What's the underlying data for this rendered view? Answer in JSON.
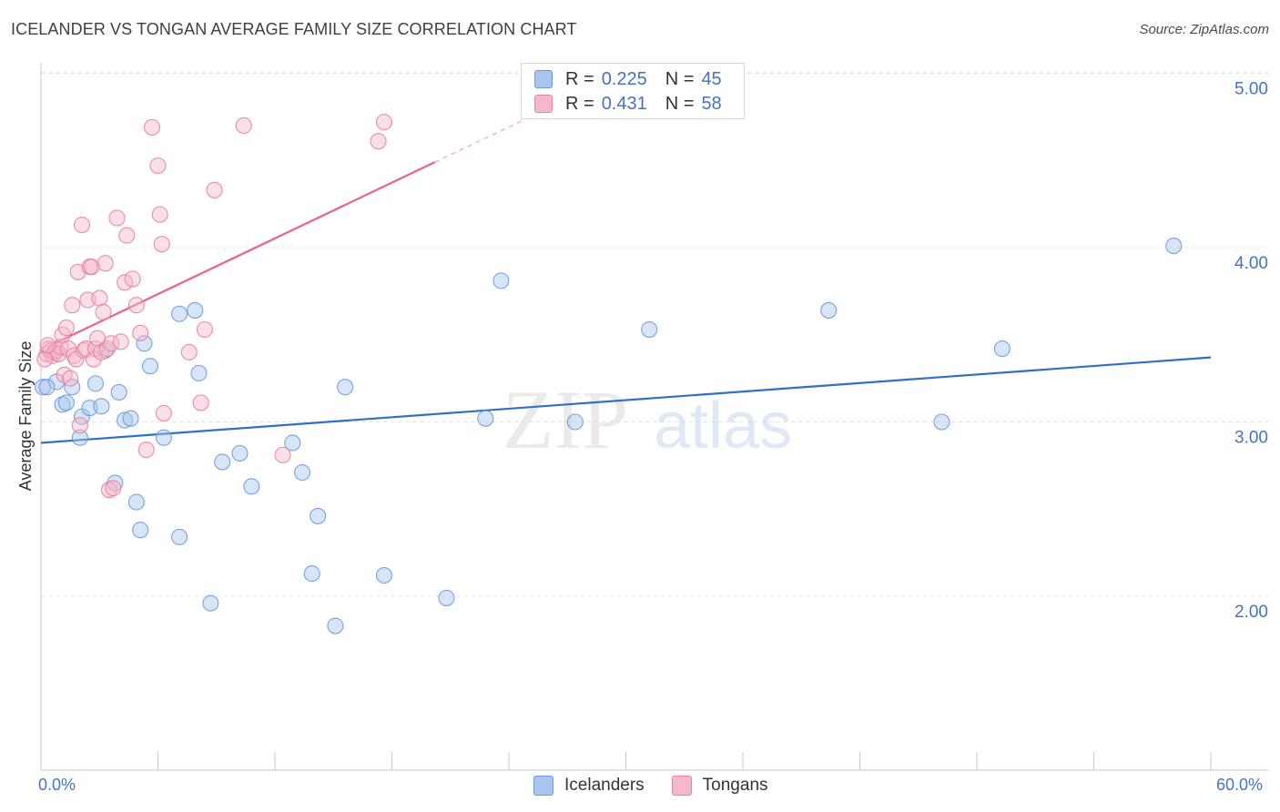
{
  "title": "ICELANDER VS TONGAN AVERAGE FAMILY SIZE CORRELATION CHART",
  "source": "Source: ZipAtlas.com",
  "watermark": {
    "zip": "ZIP",
    "atlas": "atlas"
  },
  "legend": {
    "rows": [
      {
        "r_label": "R =",
        "r_value": "0.225",
        "n_label": "N =",
        "n_value": "45",
        "color": "#a9c4ef"
      },
      {
        "r_label": "R =",
        "r_value": "0.431",
        "n_label": "N =",
        "n_value": "58",
        "color": "#f5b8ca"
      }
    ]
  },
  "bottom_legend": {
    "items": [
      {
        "label": "Icelanders",
        "color": "#a9c4ef"
      },
      {
        "label": "Tongans",
        "color": "#f5b8ca"
      }
    ]
  },
  "x_axis": {
    "min_label": "0.0%",
    "max_label": "60.0%"
  },
  "chart_data": {
    "type": "scatter",
    "title": "ICELANDER VS TONGAN AVERAGE FAMILY SIZE CORRELATION CHART",
    "xlabel": "",
    "ylabel": "Average Family Size",
    "xlim": [
      0,
      60
    ],
    "ylim": [
      1.0,
      5.1
    ],
    "y_ticks": [
      2.0,
      3.0,
      4.0,
      5.0
    ],
    "y_tick_labels": [
      "2.00",
      "3.00",
      "4.00",
      "5.00"
    ],
    "x_ticks": [
      0,
      6,
      12,
      18,
      24,
      30,
      36,
      42,
      48,
      54,
      60
    ],
    "grid": true,
    "series": [
      {
        "name": "Icelanders",
        "color": "#a9c4ef",
        "edge": "#6a9ad8",
        "r": 0.225,
        "n": 45,
        "trend": {
          "x0": 0,
          "y0": 2.88,
          "x1": 60,
          "y1": 3.37,
          "color": "#2f6fc9"
        },
        "points": [
          [
            0.1,
            3.2
          ],
          [
            0.8,
            3.23
          ],
          [
            1.1,
            3.1
          ],
          [
            1.3,
            3.11
          ],
          [
            1.6,
            3.2
          ],
          [
            2.0,
            2.91
          ],
          [
            2.1,
            3.03
          ],
          [
            2.5,
            3.08
          ],
          [
            2.8,
            3.22
          ],
          [
            3.1,
            3.09
          ],
          [
            3.3,
            3.41
          ],
          [
            3.8,
            2.65
          ],
          [
            4.0,
            3.17
          ],
          [
            4.3,
            3.01
          ],
          [
            4.6,
            3.02
          ],
          [
            4.9,
            2.54
          ],
          [
            5.1,
            2.38
          ],
          [
            5.3,
            3.45
          ],
          [
            5.6,
            3.32
          ],
          [
            6.3,
            2.91
          ],
          [
            7.1,
            2.34
          ],
          [
            7.1,
            3.62
          ],
          [
            7.9,
            3.64
          ],
          [
            8.1,
            3.28
          ],
          [
            8.7,
            1.96
          ],
          [
            9.3,
            2.77
          ],
          [
            10.2,
            2.82
          ],
          [
            10.8,
            2.63
          ],
          [
            12.9,
            2.88
          ],
          [
            13.4,
            2.71
          ],
          [
            13.9,
            2.13
          ],
          [
            14.2,
            2.46
          ],
          [
            15.1,
            1.83
          ],
          [
            15.6,
            3.2
          ],
          [
            17.6,
            2.12
          ],
          [
            20.8,
            1.99
          ],
          [
            22.8,
            3.02
          ],
          [
            23.6,
            3.81
          ],
          [
            27.4,
            3.0
          ],
          [
            31.2,
            3.53
          ],
          [
            40.4,
            3.64
          ],
          [
            46.2,
            3.0
          ],
          [
            49.3,
            3.42
          ],
          [
            58.1,
            4.01
          ],
          [
            0.3,
            3.2
          ]
        ]
      },
      {
        "name": "Tongans",
        "color": "#f5b8ca",
        "edge": "#e8829f",
        "r": 0.431,
        "n": 58,
        "trend": {
          "x0": 0.5,
          "y0": 3.44,
          "x1": 20.2,
          "y1": 4.49,
          "color": "#e8638b",
          "dash_to": {
            "x": 28.5,
            "y": 4.93
          }
        },
        "points": [
          [
            0.3,
            3.39
          ],
          [
            0.4,
            3.42
          ],
          [
            0.5,
            3.41
          ],
          [
            0.6,
            3.38
          ],
          [
            0.7,
            3.4
          ],
          [
            0.8,
            3.41
          ],
          [
            0.9,
            3.39
          ],
          [
            1.0,
            3.43
          ],
          [
            1.1,
            3.5
          ],
          [
            1.2,
            3.27
          ],
          [
            1.3,
            3.54
          ],
          [
            1.4,
            3.42
          ],
          [
            1.5,
            3.25
          ],
          [
            1.6,
            3.67
          ],
          [
            1.7,
            3.38
          ],
          [
            1.8,
            3.36
          ],
          [
            1.9,
            3.86
          ],
          [
            2.0,
            2.98
          ],
          [
            2.1,
            4.13
          ],
          [
            2.2,
            3.41
          ],
          [
            2.3,
            3.42
          ],
          [
            2.4,
            3.7
          ],
          [
            2.5,
            3.89
          ],
          [
            2.6,
            3.89
          ],
          [
            2.7,
            3.36
          ],
          [
            2.8,
            3.42
          ],
          [
            2.9,
            3.48
          ],
          [
            3.0,
            3.71
          ],
          [
            3.1,
            3.4
          ],
          [
            3.2,
            3.63
          ],
          [
            3.3,
            3.91
          ],
          [
            3.4,
            3.42
          ],
          [
            3.5,
            2.61
          ],
          [
            3.6,
            3.45
          ],
          [
            3.7,
            2.62
          ],
          [
            3.9,
            4.17
          ],
          [
            4.1,
            3.46
          ],
          [
            4.3,
            3.8
          ],
          [
            4.4,
            4.07
          ],
          [
            4.7,
            3.82
          ],
          [
            4.9,
            3.67
          ],
          [
            5.1,
            3.51
          ],
          [
            5.4,
            2.84
          ],
          [
            5.7,
            4.69
          ],
          [
            6.0,
            4.47
          ],
          [
            6.1,
            4.19
          ],
          [
            6.2,
            4.02
          ],
          [
            6.3,
            3.05
          ],
          [
            7.6,
            3.4
          ],
          [
            8.2,
            3.11
          ],
          [
            8.4,
            3.53
          ],
          [
            8.9,
            4.33
          ],
          [
            10.4,
            4.7
          ],
          [
            12.4,
            2.81
          ],
          [
            17.3,
            4.61
          ],
          [
            17.6,
            4.72
          ],
          [
            0.2,
            3.36
          ],
          [
            0.35,
            3.44
          ]
        ]
      }
    ]
  }
}
